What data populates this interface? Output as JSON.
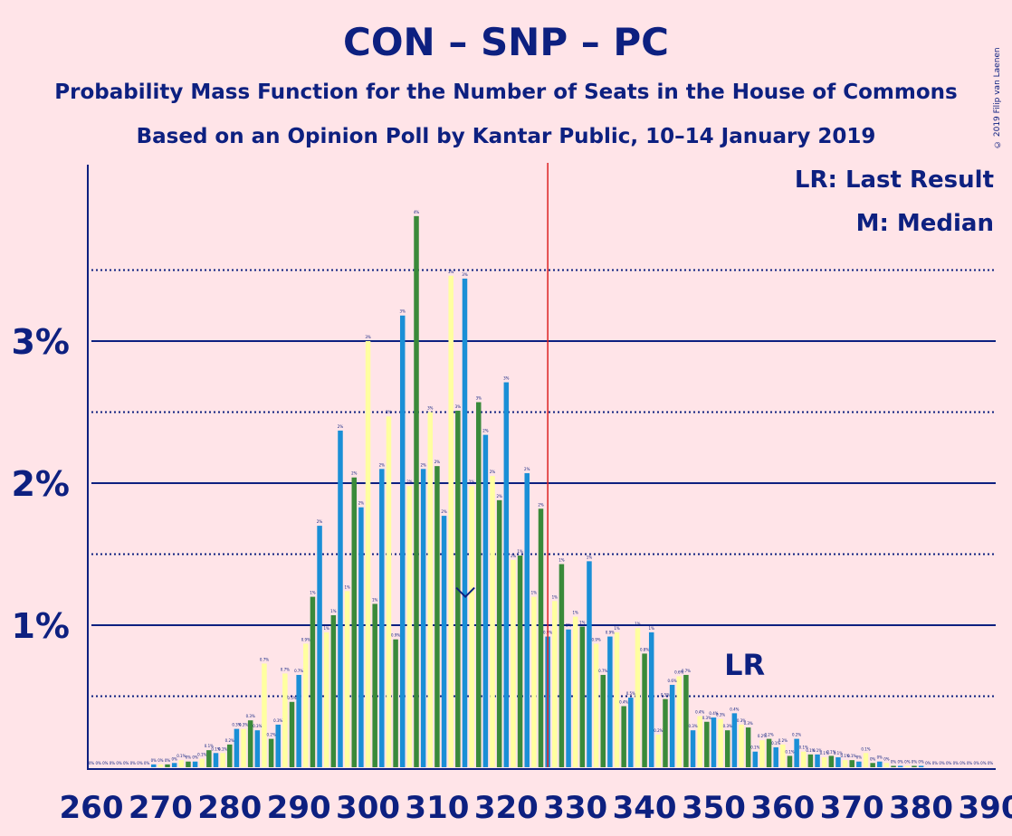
{
  "title": "CON – SNP – PC",
  "subtitle1": "Probability Mass Function for the Number of Seats in the House of Commons",
  "subtitle2": "Based on an Opinion Poll by Kantar Public, 10–14 January 2019",
  "copyright": "© 2019 Filip van Laenen",
  "legend": {
    "lr": "LR: Last Result",
    "m": "M: Median"
  },
  "colors": {
    "background": "#ffe4e8",
    "text": "#0d2080",
    "blue": "#1a8fd6",
    "green": "#3a8a3a",
    "yellow": "#ffffa0",
    "majority": "#dd2222"
  },
  "chart_data": {
    "type": "bar",
    "xlabel": "",
    "ylabel": "",
    "xlim": [
      260,
      390
    ],
    "ylim": [
      0,
      4.2
    ],
    "xticks": [
      "260",
      "270",
      "280",
      "290",
      "300",
      "310",
      "320",
      "330",
      "340",
      "350",
      "360",
      "370",
      "380",
      "390"
    ],
    "yticks": [
      {
        "value": 1,
        "label": "1%"
      },
      {
        "value": 2,
        "label": "2%"
      },
      {
        "value": 3,
        "label": "3%"
      }
    ],
    "minor_gridlines": [
      0.5,
      1.5,
      2.5,
      3.5
    ],
    "majority_line": 326,
    "last_result": {
      "seat": 355,
      "label": "LR"
    },
    "median": {
      "seat": 315,
      "label": "M"
    },
    "series_order": [
      "blue",
      "yellow",
      "green"
    ],
    "bars": [
      {
        "seat": 260,
        "series": "blue",
        "value": 0
      },
      {
        "seat": 261,
        "series": "yellow",
        "value": 0
      },
      {
        "seat": 262,
        "series": "green",
        "value": 0
      },
      {
        "seat": 263,
        "series": "blue",
        "value": 0
      },
      {
        "seat": 264,
        "series": "yellow",
        "value": 0
      },
      {
        "seat": 265,
        "series": "green",
        "value": 0
      },
      {
        "seat": 266,
        "series": "blue",
        "value": 0
      },
      {
        "seat": 267,
        "series": "yellow",
        "value": 0
      },
      {
        "seat": 268,
        "series": "green",
        "value": 0
      },
      {
        "seat": 269,
        "series": "blue",
        "value": 0.02
      },
      {
        "seat": 270,
        "series": "yellow",
        "value": 0.02
      },
      {
        "seat": 271,
        "series": "green",
        "value": 0.02
      },
      {
        "seat": 272,
        "series": "blue",
        "value": 0.03
      },
      {
        "seat": 273,
        "series": "yellow",
        "value": 0.05
      },
      {
        "seat": 274,
        "series": "green",
        "value": 0.04
      },
      {
        "seat": 275,
        "series": "blue",
        "value": 0.04
      },
      {
        "seat": 276,
        "series": "yellow",
        "value": 0.06
      },
      {
        "seat": 277,
        "series": "green",
        "value": 0.12
      },
      {
        "seat": 278,
        "series": "blue",
        "value": 0.1
      },
      {
        "seat": 279,
        "series": "yellow",
        "value": 0.1
      },
      {
        "seat": 280,
        "series": "green",
        "value": 0.16
      },
      {
        "seat": 281,
        "series": "blue",
        "value": 0.27
      },
      {
        "seat": 282,
        "series": "yellow",
        "value": 0.27
      },
      {
        "seat": 283,
        "series": "green",
        "value": 0.33
      },
      {
        "seat": 284,
        "series": "blue",
        "value": 0.26
      },
      {
        "seat": 285,
        "series": "yellow",
        "value": 0.73
      },
      {
        "seat": 286,
        "series": "green",
        "value": 0.2
      },
      {
        "seat": 287,
        "series": "blue",
        "value": 0.3
      },
      {
        "seat": 288,
        "series": "yellow",
        "value": 0.66
      },
      {
        "seat": 289,
        "series": "green",
        "value": 0.46
      },
      {
        "seat": 290,
        "series": "blue",
        "value": 0.65
      },
      {
        "seat": 291,
        "series": "yellow",
        "value": 0.87
      },
      {
        "seat": 292,
        "series": "green",
        "value": 1.2
      },
      {
        "seat": 293,
        "series": "blue",
        "value": 1.7
      },
      {
        "seat": 294,
        "series": "yellow",
        "value": 0.95
      },
      {
        "seat": 295,
        "series": "green",
        "value": 1.07
      },
      {
        "seat": 296,
        "series": "blue",
        "value": 2.37
      },
      {
        "seat": 297,
        "series": "yellow",
        "value": 1.24
      },
      {
        "seat": 298,
        "series": "green",
        "value": 2.04
      },
      {
        "seat": 299,
        "series": "blue",
        "value": 1.83
      },
      {
        "seat": 300,
        "series": "yellow",
        "value": 3.0
      },
      {
        "seat": 301,
        "series": "green",
        "value": 1.15
      },
      {
        "seat": 302,
        "series": "blue",
        "value": 2.1
      },
      {
        "seat": 303,
        "series": "yellow",
        "value": 2.47
      },
      {
        "seat": 304,
        "series": "green",
        "value": 0.9
      },
      {
        "seat": 305,
        "series": "blue",
        "value": 3.18
      },
      {
        "seat": 306,
        "series": "yellow",
        "value": 1.98
      },
      {
        "seat": 307,
        "series": "green",
        "value": 3.88
      },
      {
        "seat": 308,
        "series": "blue",
        "value": 2.1
      },
      {
        "seat": 309,
        "series": "yellow",
        "value": 2.5
      },
      {
        "seat": 310,
        "series": "green",
        "value": 2.12
      },
      {
        "seat": 311,
        "series": "blue",
        "value": 1.77
      },
      {
        "seat": 312,
        "series": "yellow",
        "value": 3.46
      },
      {
        "seat": 313,
        "series": "green",
        "value": 2.51
      },
      {
        "seat": 314,
        "series": "blue",
        "value": 3.44
      },
      {
        "seat": 315,
        "series": "yellow",
        "value": 1.98
      },
      {
        "seat": 316,
        "series": "green",
        "value": 2.57
      },
      {
        "seat": 317,
        "series": "blue",
        "value": 2.34
      },
      {
        "seat": 318,
        "series": "yellow",
        "value": 2.05
      },
      {
        "seat": 319,
        "series": "green",
        "value": 1.88
      },
      {
        "seat": 320,
        "series": "blue",
        "value": 2.71
      },
      {
        "seat": 321,
        "series": "yellow",
        "value": 1.46
      },
      {
        "seat": 322,
        "series": "green",
        "value": 1.49
      },
      {
        "seat": 323,
        "series": "blue",
        "value": 2.07
      },
      {
        "seat": 324,
        "series": "yellow",
        "value": 1.2
      },
      {
        "seat": 325,
        "series": "green",
        "value": 1.82
      },
      {
        "seat": 326,
        "series": "blue",
        "value": 0.92
      },
      {
        "seat": 327,
        "series": "yellow",
        "value": 1.17
      },
      {
        "seat": 328,
        "series": "green",
        "value": 1.43
      },
      {
        "seat": 329,
        "series": "blue",
        "value": 0.97
      },
      {
        "seat": 330,
        "series": "yellow",
        "value": 1.06
      },
      {
        "seat": 331,
        "series": "green",
        "value": 0.99
      },
      {
        "seat": 332,
        "series": "blue",
        "value": 1.45
      },
      {
        "seat": 333,
        "series": "yellow",
        "value": 0.87
      },
      {
        "seat": 334,
        "series": "green",
        "value": 0.65
      },
      {
        "seat": 335,
        "series": "blue",
        "value": 0.92
      },
      {
        "seat": 336,
        "series": "yellow",
        "value": 0.95
      },
      {
        "seat": 337,
        "series": "green",
        "value": 0.43
      },
      {
        "seat": 338,
        "series": "blue",
        "value": 0.49
      },
      {
        "seat": 339,
        "series": "yellow",
        "value": 0.98
      },
      {
        "seat": 340,
        "series": "green",
        "value": 0.8
      },
      {
        "seat": 341,
        "series": "blue",
        "value": 0.95
      },
      {
        "seat": 342,
        "series": "yellow",
        "value": 0.23
      },
      {
        "seat": 343,
        "series": "green",
        "value": 0.48
      },
      {
        "seat": 344,
        "series": "blue",
        "value": 0.58
      },
      {
        "seat": 345,
        "series": "yellow",
        "value": 0.64
      },
      {
        "seat": 346,
        "series": "green",
        "value": 0.65
      },
      {
        "seat": 347,
        "series": "blue",
        "value": 0.26
      },
      {
        "seat": 348,
        "series": "yellow",
        "value": 0.36
      },
      {
        "seat": 349,
        "series": "green",
        "value": 0.32
      },
      {
        "seat": 350,
        "series": "blue",
        "value": 0.35
      },
      {
        "seat": 351,
        "series": "yellow",
        "value": 0.34
      },
      {
        "seat": 352,
        "series": "green",
        "value": 0.26
      },
      {
        "seat": 353,
        "series": "blue",
        "value": 0.38
      },
      {
        "seat": 354,
        "series": "yellow",
        "value": 0.3
      },
      {
        "seat": 355,
        "series": "green",
        "value": 0.28
      },
      {
        "seat": 356,
        "series": "blue",
        "value": 0.11
      },
      {
        "seat": 357,
        "series": "yellow",
        "value": 0.19
      },
      {
        "seat": 358,
        "series": "green",
        "value": 0.2
      },
      {
        "seat": 359,
        "series": "blue",
        "value": 0.14
      },
      {
        "seat": 360,
        "series": "yellow",
        "value": 0.16
      },
      {
        "seat": 361,
        "series": "green",
        "value": 0.08
      },
      {
        "seat": 362,
        "series": "blue",
        "value": 0.2
      },
      {
        "seat": 363,
        "series": "yellow",
        "value": 0.11
      },
      {
        "seat": 364,
        "series": "green",
        "value": 0.09
      },
      {
        "seat": 365,
        "series": "blue",
        "value": 0.09
      },
      {
        "seat": 366,
        "series": "yellow",
        "value": 0.07
      },
      {
        "seat": 367,
        "series": "green",
        "value": 0.08
      },
      {
        "seat": 368,
        "series": "blue",
        "value": 0.07
      },
      {
        "seat": 369,
        "series": "yellow",
        "value": 0.05
      },
      {
        "seat": 370,
        "series": "green",
        "value": 0.05
      },
      {
        "seat": 371,
        "series": "blue",
        "value": 0.04
      },
      {
        "seat": 372,
        "series": "yellow",
        "value": 0.1
      },
      {
        "seat": 373,
        "series": "green",
        "value": 0.03
      },
      {
        "seat": 374,
        "series": "blue",
        "value": 0.04
      },
      {
        "seat": 375,
        "series": "yellow",
        "value": 0.03
      },
      {
        "seat": 376,
        "series": "green",
        "value": 0.01
      },
      {
        "seat": 377,
        "series": "blue",
        "value": 0.01
      },
      {
        "seat": 378,
        "series": "yellow",
        "value": 0.01
      },
      {
        "seat": 379,
        "series": "green",
        "value": 0.01
      },
      {
        "seat": 380,
        "series": "blue",
        "value": 0.01
      },
      {
        "seat": 381,
        "series": "yellow",
        "value": 0
      },
      {
        "seat": 382,
        "series": "green",
        "value": 0
      },
      {
        "seat": 383,
        "series": "blue",
        "value": 0
      },
      {
        "seat": 384,
        "series": "yellow",
        "value": 0
      },
      {
        "seat": 385,
        "series": "green",
        "value": 0
      },
      {
        "seat": 386,
        "series": "blue",
        "value": 0
      },
      {
        "seat": 387,
        "series": "yellow",
        "value": 0
      },
      {
        "seat": 388,
        "series": "green",
        "value": 0
      },
      {
        "seat": 389,
        "series": "blue",
        "value": 0
      },
      {
        "seat": 390,
        "series": "yellow",
        "value": 0
      }
    ]
  }
}
